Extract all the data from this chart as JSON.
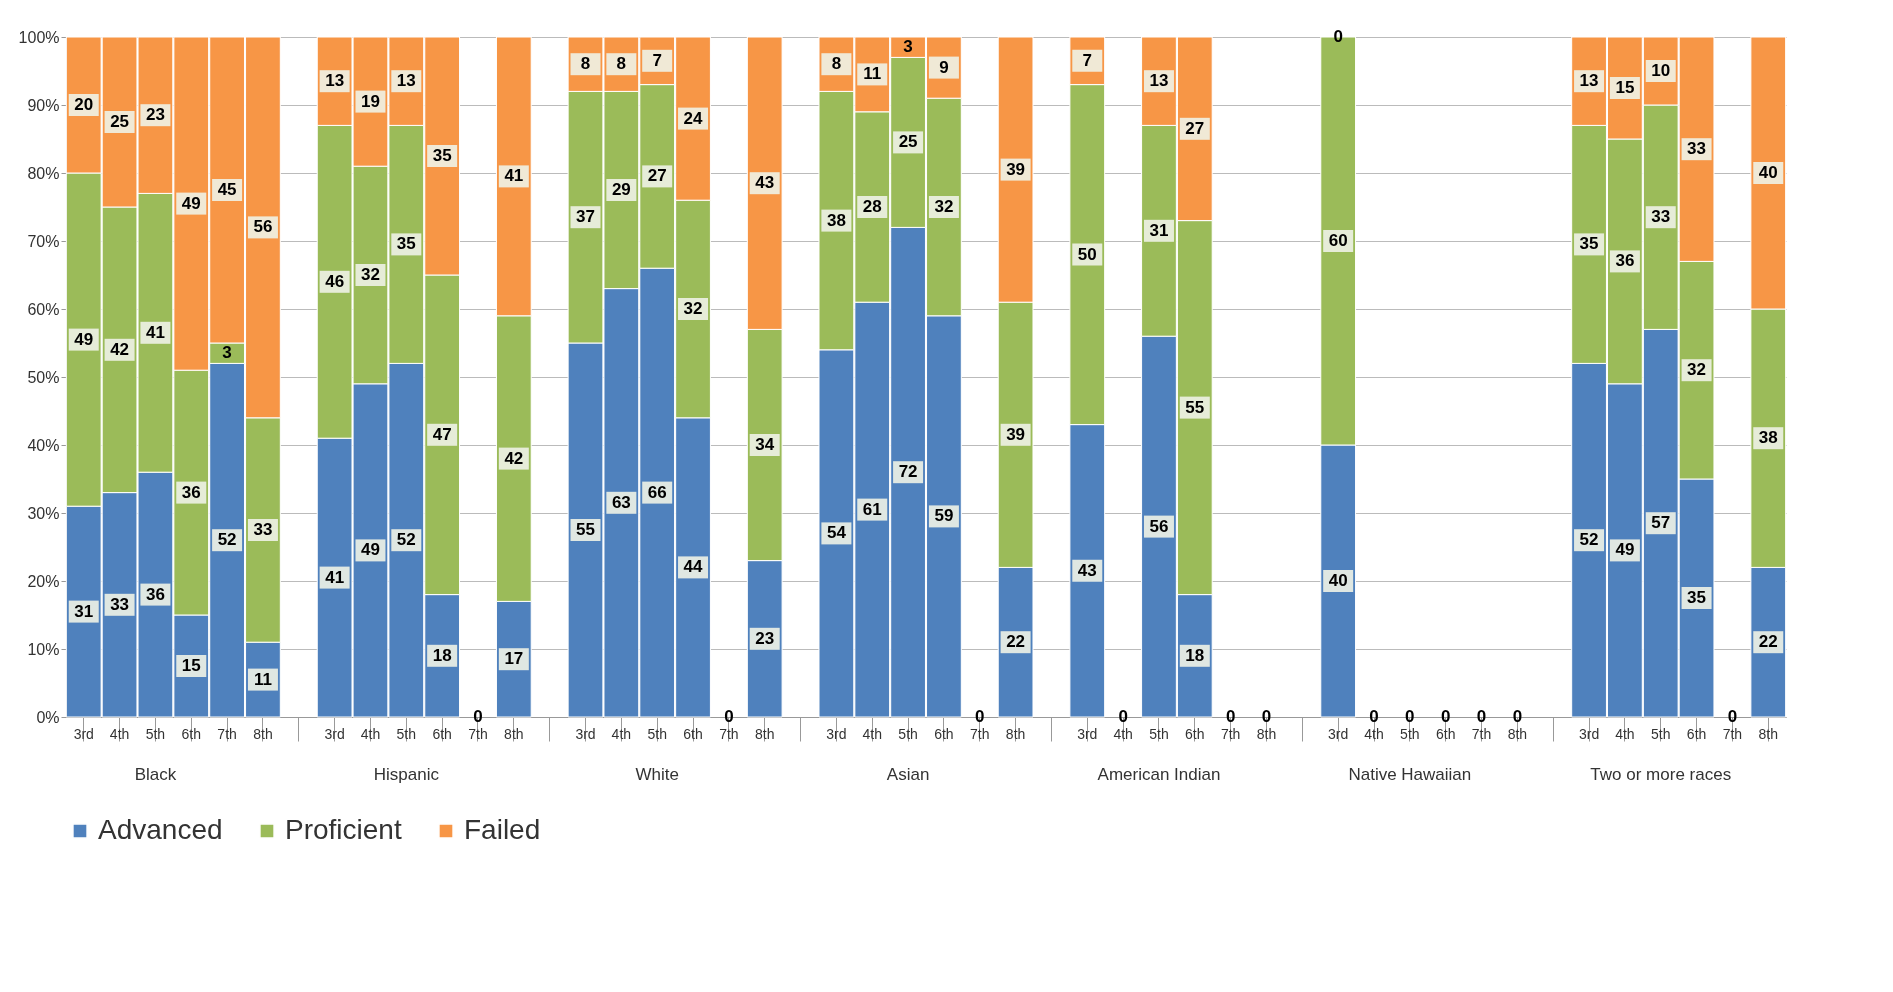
{
  "chart_data": {
    "type": "bar",
    "stacked": true,
    "categories": [
      "3rd",
      "4th",
      "5th",
      "6th",
      "7th",
      "8th",
      "3rd",
      "4th",
      "5th",
      "6th",
      "7th",
      "8th",
      "3rd",
      "4th",
      "5th",
      "6th",
      "7th",
      "8th",
      "3rd",
      "4th",
      "5th",
      "6th",
      "7th",
      "8th",
      "3rd",
      "4th",
      "5th",
      "6th",
      "7th",
      "8th",
      "3rd",
      "4th",
      "5th",
      "6th",
      "7th",
      "8th",
      "3rd",
      "4th",
      "5th",
      "6th",
      "7th",
      "8th"
    ],
    "annotations": [
      "Black",
      "Hispanic",
      "White",
      "Asian",
      "American Indian",
      "Native Hawaiian",
      "Two or more races"
    ],
    "series": [
      {
        "name": "Advanced",
        "color": "#4f81bd",
        "values": [
          31,
          33,
          36,
          15,
          52,
          11,
          41,
          49,
          52,
          18,
          0,
          17,
          55,
          63,
          66,
          44,
          0,
          23,
          54,
          61,
          72,
          59,
          0,
          22,
          43,
          0,
          56,
          18,
          0,
          0,
          40,
          0,
          0,
          0,
          0,
          0,
          52,
          49,
          57,
          35,
          0,
          22
        ],
        "value_labels": [
          "31",
          "33",
          "36",
          "15",
          "52",
          "11",
          "41",
          "49",
          "52",
          "18",
          "0",
          "17",
          "55",
          "63",
          "66",
          "44",
          "0",
          "23",
          "54",
          "61",
          "72",
          "59",
          "0",
          "22",
          "43",
          "0",
          "56",
          "18",
          "0",
          "0",
          "40",
          "0",
          "0",
          "0",
          "0",
          "0",
          "52",
          "49",
          "57",
          "35",
          "0",
          "22"
        ]
      },
      {
        "name": "Proficient",
        "color": "#9bbb59",
        "values": [
          49,
          42,
          41,
          36,
          3,
          33,
          46,
          32,
          35,
          47,
          0,
          42,
          37,
          29,
          27,
          32,
          0,
          34,
          38,
          28,
          25,
          32,
          0,
          39,
          50,
          0,
          31,
          55,
          0,
          0,
          60,
          0,
          0,
          0,
          0,
          0,
          35,
          36,
          33,
          32,
          0,
          38
        ],
        "value_labels": [
          "49",
          "42",
          "41",
          "36",
          "3",
          "33",
          "46",
          "32",
          "35",
          "47",
          null,
          "42",
          "37",
          "29",
          "27",
          "32",
          null,
          "34",
          "38",
          "28",
          "25",
          "32",
          null,
          "39",
          "50",
          null,
          "31",
          "55",
          null,
          null,
          "60",
          null,
          null,
          null,
          null,
          null,
          "35",
          "36",
          "33",
          "32",
          null,
          "38"
        ]
      },
      {
        "name": "Failed",
        "color": "#f79646",
        "values": [
          20,
          25,
          23,
          49,
          45,
          56,
          13,
          19,
          13,
          35,
          0,
          41,
          8,
          8,
          7,
          24,
          0,
          43,
          8,
          11,
          3,
          9,
          0,
          39,
          7,
          0,
          13,
          27,
          0,
          0,
          0,
          0,
          0,
          0,
          0,
          0,
          13,
          15,
          10,
          33,
          0,
          40
        ],
        "value_labels": [
          "20",
          "25",
          "23",
          "49",
          "45",
          "56",
          "13",
          "19",
          "13",
          "35",
          null,
          "41",
          "8",
          "8",
          "7",
          "24",
          null,
          "43",
          "8",
          "11",
          "3",
          "9",
          null,
          "39",
          "7",
          null,
          "13",
          "27",
          null,
          null,
          "0",
          null,
          null,
          null,
          null,
          null,
          "13",
          "15",
          "10",
          "33",
          null,
          "40"
        ]
      }
    ],
    "ylim": [
      0,
      100
    ],
    "yticks": [
      {
        "value": 0,
        "label": "0%"
      },
      {
        "value": 10,
        "label": "10%"
      },
      {
        "value": 20,
        "label": "20%"
      },
      {
        "value": 30,
        "label": "30%"
      },
      {
        "value": 40,
        "label": "40%"
      },
      {
        "value": 50,
        "label": "50%"
      },
      {
        "value": 60,
        "label": "60%"
      },
      {
        "value": 70,
        "label": "70%"
      },
      {
        "value": 80,
        "label": "80%"
      },
      {
        "value": 90,
        "label": "90%"
      },
      {
        "value": 100,
        "label": "100%"
      }
    ],
    "grid": "y",
    "legend": "bottom"
  }
}
